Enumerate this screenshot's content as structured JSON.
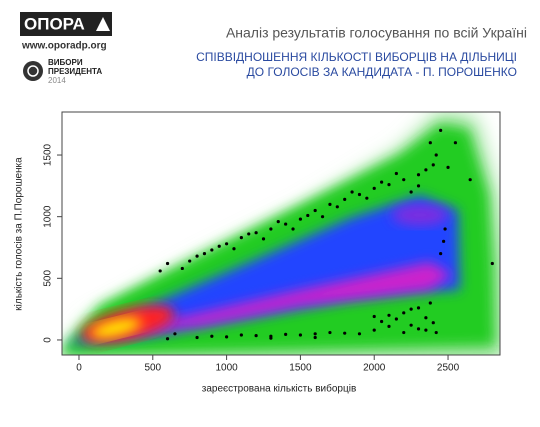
{
  "logo": {
    "name": "ОПОРА",
    "url": "www.oporadp.org",
    "badge": [
      "ВИБОРИ",
      "ПРЕЗИДЕНТА",
      "2014"
    ]
  },
  "chart_data": {
    "type": "scatter",
    "title": "Аналіз результатів голосування по всій Україні",
    "subtitle": [
      "СПІВВІДНОШЕННЯ КІЛЬКОСТІ ВИБОРЦІВ НА ДІЛЬНИЦІ",
      "ДО ГОЛОСІВ ЗА КАНДИДАТА - П. ПОРОШЕНКО"
    ],
    "x_label": "зареєстрована кількість виборців",
    "y_label": "кількість голосів за П.Порошенка",
    "color": "#000000",
    "x": [
      600,
      750,
      850,
      950,
      1000,
      1100,
      1200,
      1300,
      1400,
      1500,
      1550,
      1600,
      1700,
      1800,
      1900,
      2000,
      2100,
      2200,
      2300,
      2350,
      2400,
      2420,
      2380,
      2450,
      2300,
      2250,
      2150,
      2050,
      1950,
      1850,
      1750,
      1650,
      1450,
      1350,
      1250,
      1150,
      1050,
      900,
      800,
      700,
      550,
      2500,
      2480,
      2450,
      2470,
      2800,
      2650,
      2550,
      800,
      900,
      1000,
      1100,
      1200,
      1300,
      1400,
      1500,
      1600,
      1700,
      1800,
      1900,
      2000,
      2050,
      2100,
      2150,
      2200,
      2250,
      2300,
      2350,
      2400,
      2420,
      2380,
      2300,
      2200,
      2100,
      2000,
      2250,
      2350,
      1600,
      1300,
      600,
      650
    ],
    "values": [
      620,
      640,
      700,
      760,
      780,
      830,
      870,
      900,
      940,
      980,
      1010,
      1050,
      1100,
      1140,
      1180,
      1230,
      1260,
      1300,
      1340,
      1380,
      1420,
      1500,
      1600,
      1700,
      1250,
      1200,
      1350,
      1280,
      1150,
      1200,
      1080,
      1000,
      900,
      960,
      820,
      860,
      740,
      730,
      680,
      580,
      560,
      1400,
      900,
      700,
      800,
      620,
      1300,
      1600,
      20,
      30,
      25,
      40,
      35,
      30,
      45,
      40,
      50,
      60,
      55,
      50,
      80,
      150,
      200,
      170,
      220,
      120,
      260,
      180,
      140,
      60,
      300,
      90,
      60,
      110,
      190,
      250,
      80,
      20,
      15,
      10,
      50
    ],
    "xlim": [
      -115,
      2852
    ],
    "ylim": [
      -122,
      1849
    ],
    "xticks": [
      0,
      500,
      1000,
      1500,
      2000,
      2500
    ],
    "yticks": [
      0,
      500,
      1000,
      1500
    ]
  }
}
